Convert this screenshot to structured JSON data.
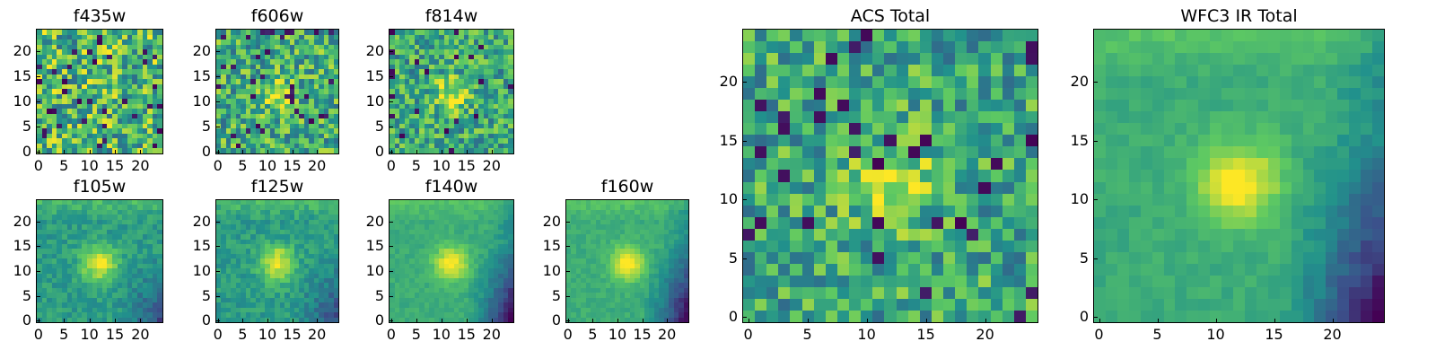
{
  "figure": {
    "panels": [
      {
        "id": "f435w",
        "title": "f435w",
        "style": "noise",
        "xticks": [
          "0",
          "5",
          "10",
          "15",
          "20"
        ],
        "yticks": [
          "0",
          "5",
          "10",
          "15",
          "20"
        ]
      },
      {
        "id": "f606w",
        "title": "f606w",
        "style": "noise-weak-source",
        "xticks": [
          "0",
          "5",
          "10",
          "15",
          "20"
        ],
        "yticks": [
          "0",
          "5",
          "10",
          "15",
          "20"
        ]
      },
      {
        "id": "f814w",
        "title": "f814w",
        "style": "noise-source",
        "xticks": [
          "0",
          "5",
          "10",
          "15",
          "20"
        ],
        "yticks": [
          "0",
          "5",
          "10",
          "15",
          "20"
        ]
      },
      {
        "id": "f105w",
        "title": "f105w",
        "style": "smooth-source",
        "xticks": [
          "0",
          "5",
          "10",
          "15",
          "20"
        ],
        "yticks": [
          "0",
          "5",
          "10",
          "15",
          "20"
        ]
      },
      {
        "id": "f125w",
        "title": "f125w",
        "style": "smooth-source",
        "xticks": [
          "0",
          "5",
          "10",
          "15",
          "20"
        ],
        "yticks": [
          "0",
          "5",
          "10",
          "15",
          "20"
        ]
      },
      {
        "id": "f140w",
        "title": "f140w",
        "style": "smooth-source-bright",
        "xticks": [
          "0",
          "5",
          "10",
          "15",
          "20"
        ],
        "yticks": [
          "0",
          "5",
          "10",
          "15",
          "20"
        ]
      },
      {
        "id": "f160w",
        "title": "f160w",
        "style": "smooth-source-bright",
        "xticks": [
          "0",
          "5",
          "10",
          "15",
          "20"
        ],
        "yticks": [
          "0",
          "5",
          "10",
          "15",
          "20"
        ]
      },
      {
        "id": "acs-total",
        "title": "ACS Total",
        "style": "noise-source",
        "xticks": [
          "0",
          "5",
          "10",
          "15",
          "20"
        ],
        "yticks": [
          "0",
          "5",
          "10",
          "15",
          "20"
        ]
      },
      {
        "id": "wfc3-ir-total",
        "title": "WFC3 IR Total",
        "style": "smooth-source-bright",
        "xticks": [
          "0",
          "5",
          "10",
          "15",
          "20"
        ],
        "yticks": [
          "0",
          "5",
          "10",
          "15",
          "20"
        ]
      }
    ],
    "colormap": [
      "#440154",
      "#3b528b",
      "#21918c",
      "#5ec962",
      "#fde725"
    ]
  }
}
